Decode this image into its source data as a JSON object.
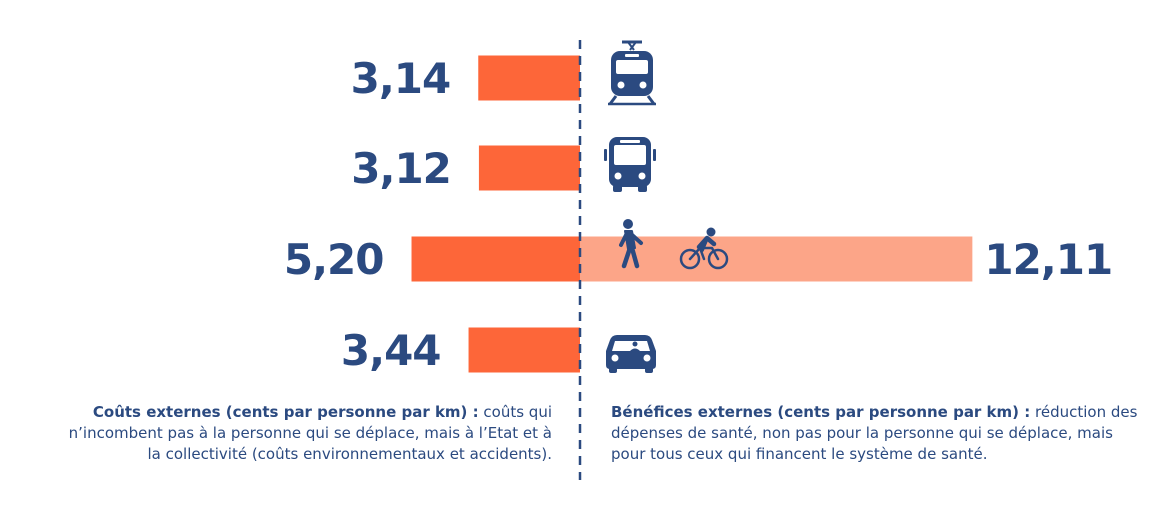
{
  "colors": {
    "cost": "#fd6639",
    "benefit": "#fca588",
    "text": "#2b4a80",
    "axis": "#2b4a80"
  },
  "chart_data": {
    "type": "bar",
    "orientation": "horizontal-diverging",
    "categories": [
      "train-icon",
      "bus-icon",
      "pedestrian-cyclist-icon",
      "car-icon"
    ],
    "series": [
      {
        "name": "Coûts externes (cents par personne par km)",
        "values": [
          3.14,
          3.12,
          5.2,
          3.44
        ],
        "labels": [
          "3,14",
          "3,12",
          "5,20",
          "3,44"
        ]
      },
      {
        "name": "Bénéfices externes (cents par personne par km)",
        "values": [
          null,
          null,
          12.11,
          null
        ],
        "labels": [
          "",
          "",
          "12,11",
          ""
        ]
      }
    ]
  },
  "notes": {
    "cost_title": "Coûts externes (cents par personne par km) :",
    "cost_text": " coûts qui n’incombent pas à la personne qui se déplace, mais à l’Etat et à la collectivité (coûts environnementaux et accidents).",
    "benefit_title": "Bénéfices externes (cents par personne par km) :",
    "benefit_text": " réduction des dépenses de santé, non pas pour la personne qui se déplace, mais pour tous ceux qui financent le système de santé."
  }
}
